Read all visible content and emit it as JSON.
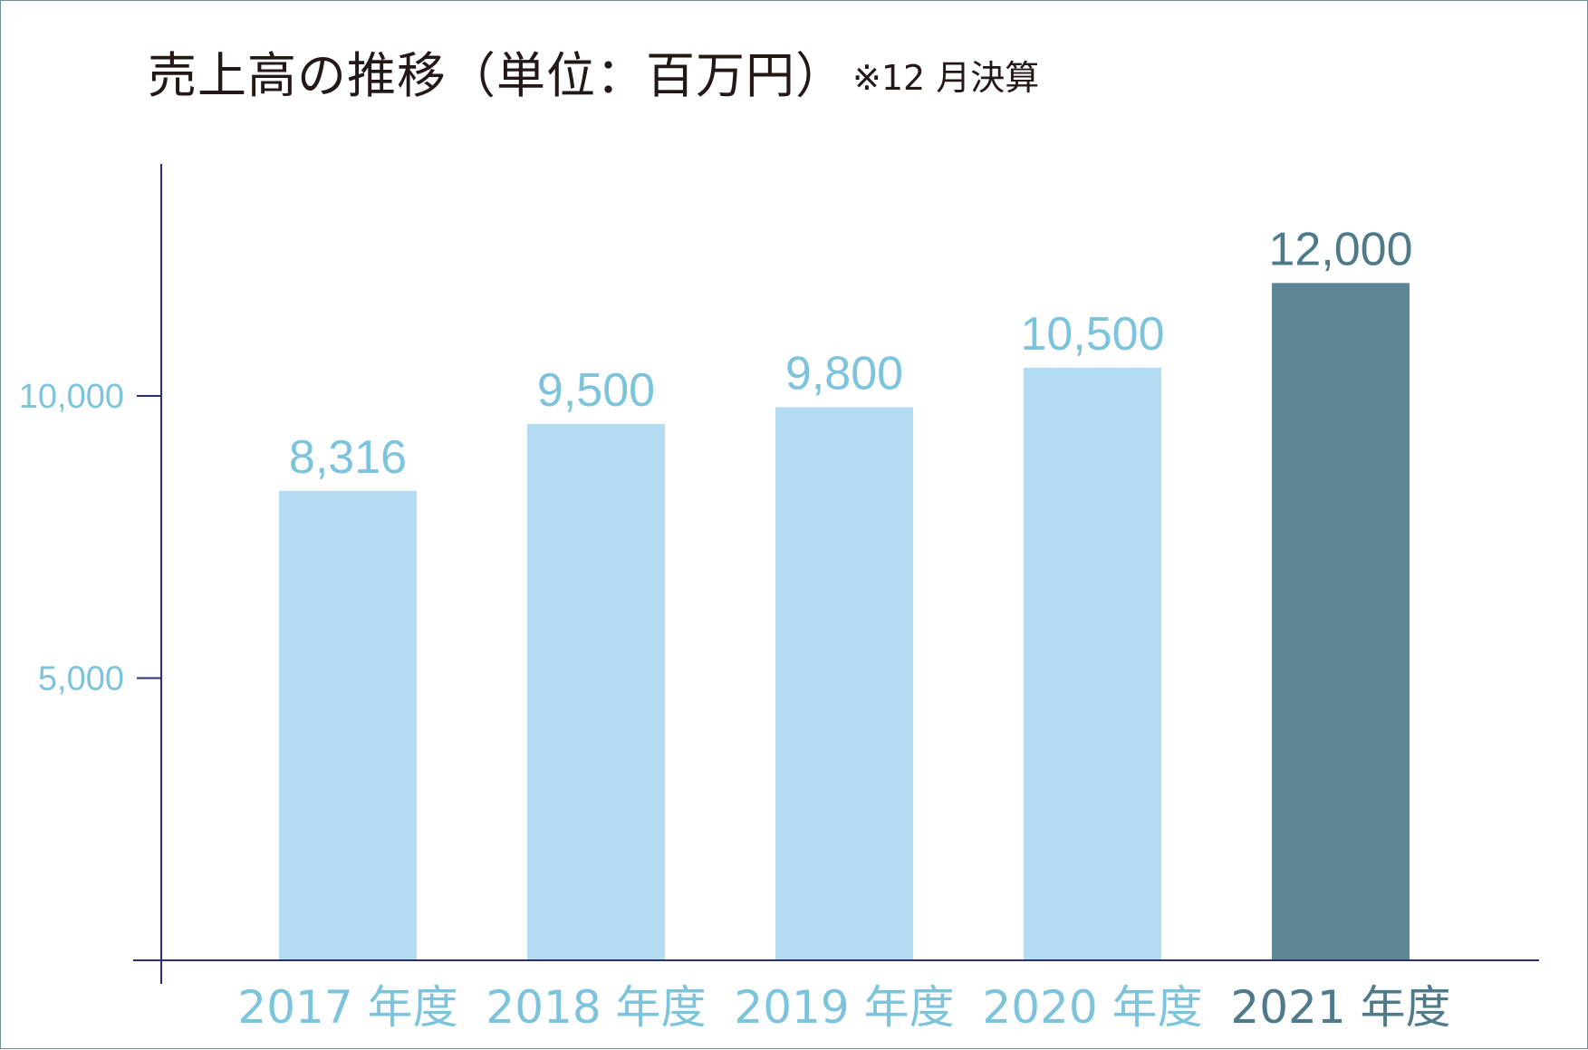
{
  "chart_data": {
    "type": "bar",
    "title": "売上高の推移（単位：百万円）",
    "note": "※12 月決算",
    "categories": [
      "2017 年度",
      "2018 年度",
      "2019 年度",
      "2020 年度",
      "2021 年度"
    ],
    "values": [
      8316,
      9500,
      9800,
      10500,
      12000
    ],
    "value_labels": [
      "8,316",
      "9,500",
      "9,800",
      "10,500",
      "12,000"
    ],
    "yticks": [
      5000,
      10000
    ],
    "ytick_labels": [
      "5,000",
      "10,000"
    ],
    "xlabel": "",
    "ylabel": "",
    "grid": false,
    "highlight_index": 4
  },
  "colors": {
    "bar": "#b3dbf1",
    "bar_highlight": "#5c8595",
    "label": "#7cc3db",
    "label_highlight": "#4f7a8a",
    "axis": "#2b2f7a",
    "frame": "#6f8e99"
  }
}
